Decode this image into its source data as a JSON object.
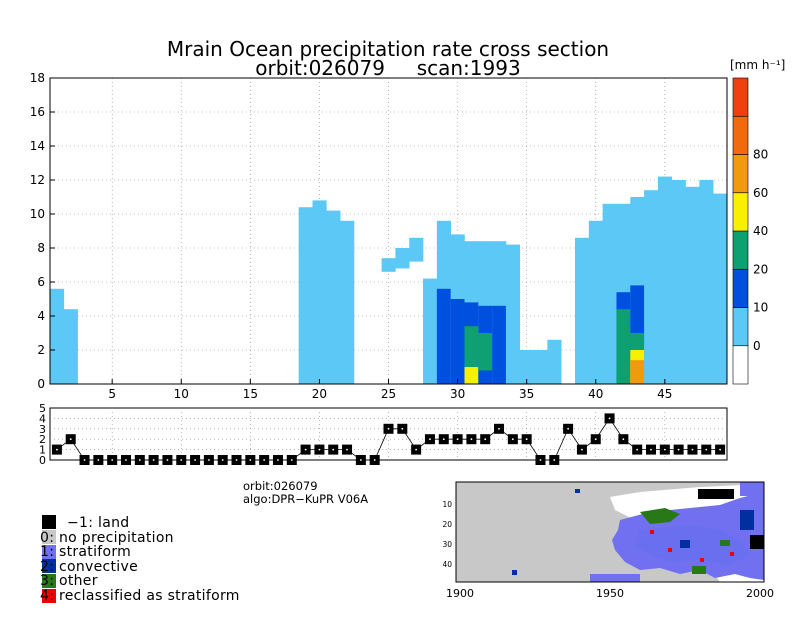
{
  "chart_data": [
    {
      "type": "heatmap",
      "name": "precipitation_rate_cross_section",
      "title": "Mrain Ocean precipitation rate cross section",
      "subtitle": "orbit:026079     scan:1993",
      "colorbar_unit": "[mm h⁻¹]",
      "xlim": [
        1,
        49
      ],
      "ylim": [
        0,
        18
      ],
      "xticks": [
        5,
        10,
        15,
        20,
        25,
        30,
        35,
        40,
        45
      ],
      "yticks": [
        0,
        2,
        4,
        6,
        8,
        10,
        12,
        14,
        16,
        18
      ],
      "grid": true,
      "colorbar": {
        "levels": [
          {
            "label": "",
            "color": "#ffffff"
          },
          {
            "label": "0",
            "color": "#5bc8f5"
          },
          {
            "label": "10",
            "color": "#0050e0"
          },
          {
            "label": "20",
            "color": "#0ea070"
          },
          {
            "label": "40",
            "color": "#f8f000"
          },
          {
            "label": "60",
            "color": "#f09a10"
          },
          {
            "label": "80",
            "color": "#f06a10"
          },
          {
            "label": "",
            "color": "#f04010"
          }
        ]
      },
      "columns": [
        {
          "bin": 1,
          "segments": [
            [
              0,
              5.6,
              "#5bc8f5"
            ]
          ]
        },
        {
          "bin": 2,
          "segments": [
            [
              0,
              4.4,
              "#5bc8f5"
            ]
          ]
        },
        {
          "bin": 19,
          "segments": [
            [
              0,
              10.4,
              "#5bc8f5"
            ]
          ]
        },
        {
          "bin": 20,
          "segments": [
            [
              0,
              10.8,
              "#5bc8f5"
            ]
          ]
        },
        {
          "bin": 21,
          "segments": [
            [
              0,
              10.2,
              "#5bc8f5"
            ]
          ]
        },
        {
          "bin": 22,
          "segments": [
            [
              0,
              9.6,
              "#5bc8f5"
            ]
          ]
        },
        {
          "bin": 25,
          "segments": [
            [
              6.6,
              7.4,
              "#5bc8f5"
            ]
          ]
        },
        {
          "bin": 26,
          "segments": [
            [
              6.8,
              8.0,
              "#5bc8f5"
            ]
          ]
        },
        {
          "bin": 27,
          "segments": [
            [
              7.2,
              8.6,
              "#5bc8f5"
            ]
          ]
        },
        {
          "bin": 28,
          "segments": [
            [
              0,
              6.2,
              "#5bc8f5"
            ]
          ]
        },
        {
          "bin": 29,
          "segments": [
            [
              0,
              9.6,
              "#5bc8f5"
            ],
            [
              0,
              5.6,
              "#0050e0"
            ]
          ]
        },
        {
          "bin": 30,
          "segments": [
            [
              0,
              8.8,
              "#5bc8f5"
            ],
            [
              0,
              5.0,
              "#0050e0"
            ]
          ]
        },
        {
          "bin": 31,
          "segments": [
            [
              0,
              8.4,
              "#5bc8f5"
            ],
            [
              0,
              4.8,
              "#0050e0"
            ],
            [
              1.0,
              3.4,
              "#0ea070"
            ],
            [
              0,
              1.0,
              "#f8f000"
            ]
          ]
        },
        {
          "bin": 32,
          "segments": [
            [
              0,
              8.4,
              "#5bc8f5"
            ],
            [
              0,
              4.6,
              "#0050e0"
            ],
            [
              0.8,
              3.0,
              "#0ea070"
            ]
          ]
        },
        {
          "bin": 33,
          "segments": [
            [
              0,
              8.4,
              "#5bc8f5"
            ],
            [
              0,
              4.6,
              "#0050e0"
            ]
          ]
        },
        {
          "bin": 34,
          "segments": [
            [
              0,
              8.2,
              "#5bc8f5"
            ]
          ]
        },
        {
          "bin": 35,
          "segments": [
            [
              0,
              2.0,
              "#5bc8f5"
            ]
          ]
        },
        {
          "bin": 36,
          "segments": [
            [
              0,
              2.0,
              "#5bc8f5"
            ]
          ]
        },
        {
          "bin": 37,
          "segments": [
            [
              0,
              2.6,
              "#5bc8f5"
            ]
          ]
        },
        {
          "bin": 39,
          "segments": [
            [
              0,
              8.6,
              "#5bc8f5"
            ]
          ]
        },
        {
          "bin": 40,
          "segments": [
            [
              0,
              9.6,
              "#5bc8f5"
            ]
          ]
        },
        {
          "bin": 41,
          "segments": [
            [
              0,
              10.6,
              "#5bc8f5"
            ]
          ]
        },
        {
          "bin": 42,
          "segments": [
            [
              0,
              10.6,
              "#5bc8f5"
            ],
            [
              0,
              5.4,
              "#0050e0"
            ],
            [
              0,
              4.4,
              "#0ea070"
            ]
          ]
        },
        {
          "bin": 43,
          "segments": [
            [
              0,
              11.0,
              "#5bc8f5"
            ],
            [
              0,
              5.8,
              "#0050e0"
            ],
            [
              0,
              3.0,
              "#0ea070"
            ],
            [
              0,
              2.0,
              "#f8f000"
            ],
            [
              0,
              1.4,
              "#f09a10"
            ]
          ]
        },
        {
          "bin": 44,
          "segments": [
            [
              0,
              11.4,
              "#5bc8f5"
            ]
          ]
        },
        {
          "bin": 45,
          "segments": [
            [
              0,
              12.2,
              "#5bc8f5"
            ]
          ]
        },
        {
          "bin": 46,
          "segments": [
            [
              0,
              12.0,
              "#5bc8f5"
            ]
          ]
        },
        {
          "bin": 47,
          "segments": [
            [
              0,
              11.6,
              "#5bc8f5"
            ]
          ]
        },
        {
          "bin": 48,
          "segments": [
            [
              0,
              12.0,
              "#5bc8f5"
            ]
          ]
        },
        {
          "bin": 49,
          "segments": [
            [
              0,
              11.2,
              "#5bc8f5"
            ]
          ]
        }
      ]
    },
    {
      "type": "line",
      "name": "precipitation_type_flag",
      "ylim": [
        0,
        5
      ],
      "yticks": [
        0,
        1,
        2,
        3,
        4,
        5
      ],
      "x": [
        1,
        2,
        3,
        4,
        5,
        6,
        7,
        8,
        9,
        10,
        11,
        12,
        13,
        14,
        15,
        16,
        17,
        18,
        19,
        20,
        21,
        22,
        23,
        24,
        25,
        26,
        27,
        28,
        29,
        30,
        31,
        32,
        33,
        34,
        35,
        36,
        37,
        38,
        39,
        40,
        41,
        42,
        43,
        44,
        45,
        46,
        47,
        48,
        49
      ],
      "values": [
        1,
        2,
        0,
        0,
        0,
        0,
        0,
        0,
        0,
        0,
        0,
        0,
        0,
        0,
        0,
        0,
        0,
        0,
        1,
        1,
        1,
        1,
        0,
        0,
        3,
        3,
        1,
        2,
        2,
        2,
        2,
        2,
        3,
        2,
        2,
        0,
        0,
        3,
        1,
        2,
        4,
        2,
        1,
        1,
        1,
        1,
        1,
        1,
        1
      ]
    }
  ],
  "info": {
    "orbit": "orbit:026079",
    "algo": "algo:DPR−KuPR V06A"
  },
  "legend": [
    {
      "label": "−1: land",
      "color": "#000000"
    },
    {
      "label": "0: no precipitation",
      "color": "#c8c8c8"
    },
    {
      "label": "1: stratiform",
      "color": "#7070f0"
    },
    {
      "label": "2: convective",
      "color": "#0030a0"
    },
    {
      "label": "3: other",
      "color": "#287818"
    },
    {
      "label": "4: reclassified as stratiform",
      "color": "#f00000"
    }
  ],
  "minimap": {
    "xticks": [
      "1900",
      "1950",
      "2000"
    ],
    "yticks": [
      "10",
      "20",
      "30",
      "40"
    ]
  }
}
